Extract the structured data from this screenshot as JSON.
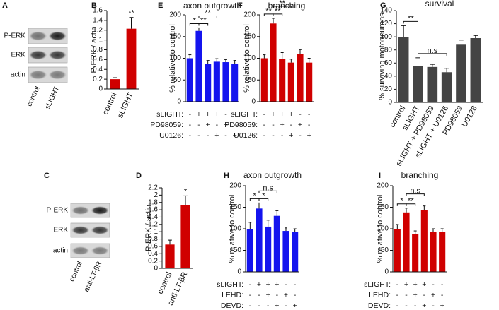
{
  "chart_data": [
    {
      "type": "blot",
      "panel_label": "A",
      "rows": [
        "P-ERK",
        "ERK",
        "actin"
      ],
      "categories": [
        "control",
        "sLIGHT"
      ]
    },
    {
      "type": "bar",
      "panel_label": "B",
      "y_label": "P-ERK / actin",
      "categories": [
        "control",
        "sLIGHT"
      ],
      "color": "#d00000",
      "values": [
        0.2,
        1.23
      ],
      "errors": [
        0.03,
        0.23
      ],
      "ylim": [
        0,
        1.6
      ],
      "yticks": [
        0,
        0.2,
        0.4,
        0.6,
        0.8,
        1,
        1.2,
        1.4,
        1.6
      ],
      "annotations": [
        {
          "at": 1,
          "text": "**"
        }
      ]
    },
    {
      "type": "bar",
      "panel_label": "E",
      "title": "axon outgrowth",
      "y_label": "% relative to control",
      "color": "#1414ee",
      "values": [
        100,
        163,
        87,
        92,
        91,
        87
      ],
      "errors": [
        8,
        7,
        8,
        7,
        6,
        8
      ],
      "ylim": [
        0,
        200
      ],
      "yticks": [
        0,
        50,
        100,
        150,
        200
      ],
      "conditions": [
        {
          "label": "sLIGHT:",
          "signs": [
            "-",
            "+",
            "+",
            "+",
            "-",
            "-"
          ]
        },
        {
          "label": "PD98059:",
          "signs": [
            "-",
            "-",
            "+",
            "-",
            "+",
            "-"
          ]
        },
        {
          "label": "U0126:",
          "signs": [
            "-",
            "-",
            "-",
            "+",
            "-",
            "+"
          ]
        }
      ],
      "annotations": [
        {
          "from": 0,
          "to": 1,
          "text": "*"
        },
        {
          "from": 1,
          "to": 2,
          "text": "**"
        },
        {
          "from": 1,
          "to": 3,
          "text": "**"
        }
      ]
    },
    {
      "type": "bar",
      "panel_label": "F",
      "title": "branching",
      "y_label": "% relative to control",
      "color": "#d00000",
      "values": [
        100,
        180,
        98,
        90,
        110,
        90
      ],
      "errors": [
        8,
        12,
        15,
        8,
        10,
        10
      ],
      "ylim": [
        0,
        200
      ],
      "yticks": [
        0,
        50,
        100,
        150,
        200
      ],
      "conditions": [
        {
          "label": "sLIGHT:",
          "signs": [
            "-",
            "+",
            "+",
            "+",
            "-",
            "-"
          ]
        },
        {
          "label": "PD98059:",
          "signs": [
            "-",
            "-",
            "+",
            "-",
            "+",
            "-"
          ]
        },
        {
          "label": "U0126:",
          "signs": [
            "-",
            "-",
            "-",
            "+",
            "-",
            "+"
          ]
        }
      ],
      "annotations": [
        {
          "from": 0,
          "to": 1,
          "text": "**"
        },
        {
          "from": 1,
          "to": 2,
          "text": "**"
        },
        {
          "from": 1,
          "to": 3,
          "text": "**"
        }
      ]
    },
    {
      "type": "bar",
      "panel_label": "G",
      "title": "survival",
      "y_label": "% surviving motoneurons",
      "color": "#444444",
      "categories": [
        "control",
        "sLIGHT",
        "sLIGHT + PD98059",
        "sLIGHT + U0126",
        "PD98059",
        "U0126"
      ],
      "values": [
        100,
        56,
        54,
        46,
        88,
        98
      ],
      "errors": [
        17,
        12,
        4,
        6,
        7,
        4
      ],
      "ylim": [
        0,
        140
      ],
      "yticks": [
        0,
        20,
        40,
        60,
        80,
        100,
        120,
        140
      ],
      "annotations": [
        {
          "from": 0,
          "to": 1,
          "text": "**"
        },
        {
          "from": 1,
          "to": 3,
          "text": "n.s"
        }
      ]
    },
    {
      "type": "blot",
      "panel_label": "C",
      "rows": [
        "P-ERK",
        "ERK",
        "actin"
      ],
      "categories": [
        "control",
        "anti-LT-βR"
      ]
    },
    {
      "type": "bar",
      "panel_label": "D",
      "y_label": "P-ERK / actin",
      "categories": [
        "control",
        "anti-LT-βR"
      ],
      "color": "#d00000",
      "values": [
        0.65,
        1.73
      ],
      "errors": [
        0.12,
        0.25
      ],
      "ylim": [
        0,
        2.2
      ],
      "yticks": [
        0,
        0.2,
        0.4,
        0.6,
        0.8,
        1,
        1.2,
        1.4,
        1.6,
        1.8,
        2,
        2.2
      ],
      "annotations": [
        {
          "at": 1,
          "text": "*"
        }
      ]
    },
    {
      "type": "bar",
      "panel_label": "H",
      "title": "axon outgrowth",
      "y_label": "% relative to control",
      "color": "#1414ee",
      "values": [
        100,
        147,
        105,
        130,
        95,
        93
      ],
      "errors": [
        15,
        13,
        15,
        12,
        7,
        7
      ],
      "ylim": [
        0,
        200
      ],
      "yticks": [
        0,
        50,
        100,
        150,
        200
      ],
      "conditions": [
        {
          "label": "sLIGHT:",
          "signs": [
            "-",
            "+",
            "+",
            "+",
            "-",
            "-"
          ]
        },
        {
          "label": "LEHD:",
          "signs": [
            "-",
            "-",
            "+",
            "-",
            "+",
            "-"
          ]
        },
        {
          "label": "DEVD:",
          "signs": [
            "-",
            "-",
            "-",
            "+",
            "-",
            "+"
          ]
        }
      ],
      "annotations": [
        {
          "from": 0,
          "to": 1,
          "text": "*"
        },
        {
          "from": 1,
          "to": 2,
          "text": "*"
        },
        {
          "from": 1,
          "to": 3,
          "text": "n.s"
        }
      ]
    },
    {
      "type": "bar",
      "panel_label": "I",
      "title": "branching",
      "y_label": "% relative to control",
      "color": "#d00000",
      "values": [
        100,
        138,
        88,
        143,
        92,
        92
      ],
      "errors": [
        10,
        10,
        7,
        10,
        8,
        8
      ],
      "ylim": [
        0,
        200
      ],
      "yticks": [
        0,
        50,
        100,
        150,
        200
      ],
      "conditions": [
        {
          "label": "sLIGHT:",
          "signs": [
            "-",
            "+",
            "+",
            "+",
            "-",
            "-"
          ]
        },
        {
          "label": "LEHD:",
          "signs": [
            "-",
            "-",
            "+",
            "-",
            "+",
            "-"
          ]
        },
        {
          "label": "DEVD:",
          "signs": [
            "-",
            "-",
            "-",
            "+",
            "-",
            "+"
          ]
        }
      ],
      "annotations": [
        {
          "from": 0,
          "to": 1,
          "text": "*"
        },
        {
          "from": 1,
          "to": 2,
          "text": "**"
        },
        {
          "from": 1,
          "to": 3,
          "text": "n.s"
        }
      ]
    }
  ]
}
